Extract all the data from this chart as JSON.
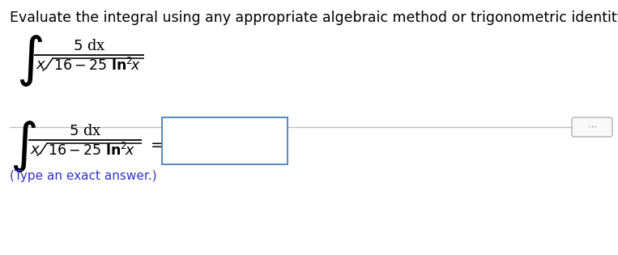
{
  "title_text": "Evaluate the integral using any appropriate algebraic method or trigonometric identity.",
  "title_color": "#000000",
  "title_fontsize": 12.5,
  "bg_color": "#ffffff",
  "divider_color": "#bbbbbb",
  "dots_color": "#777777",
  "type_answer_text": "(Type an exact answer.)",
  "type_answer_color": "#3333cc",
  "type_answer_fontsize": 11.0,
  "integral_color": "#000000",
  "box_edge_color": "#5588bb",
  "equals_color": "#000000",
  "figsize": [
    7.63,
    3.15
  ],
  "dpi": 100
}
